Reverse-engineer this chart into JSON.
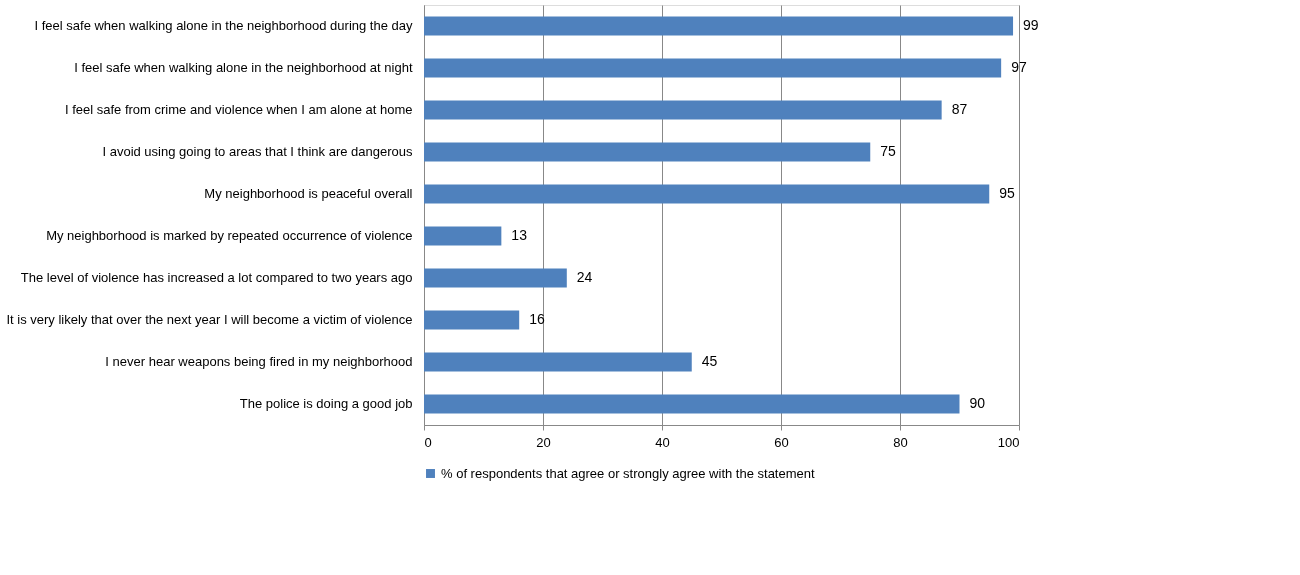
{
  "chart_data": {
    "type": "bar",
    "orientation": "horizontal",
    "categories": [
      "I feel safe when walking alone in the neighborhood during the day",
      "I feel safe when walking alone in the neighborhood at night",
      "I feel safe from crime and violence when I am alone at home",
      "I avoid using going to areas that I think are dangerous",
      "My neighborhood is peaceful overall",
      "My neighborhood is marked by repeated occurrence of violence",
      "The level of violence has increased a lot compared to two years ago",
      "It is very likely that over the next year I will become a victim of violence",
      "I never hear weapons being fired in my neighborhood",
      "The police is doing a good job"
    ],
    "series": [
      {
        "name": "% of respondents that agree or strongly agree with the statement",
        "color": "#4f81bd",
        "values": [
          99,
          97,
          87,
          75,
          95,
          13,
          24,
          16,
          45,
          90
        ]
      }
    ],
    "xlim": [
      0,
      100
    ],
    "xticks": [
      0,
      20,
      40,
      60,
      80,
      100
    ],
    "grid": "x",
    "legend": "bottom",
    "data_labels": true
  }
}
